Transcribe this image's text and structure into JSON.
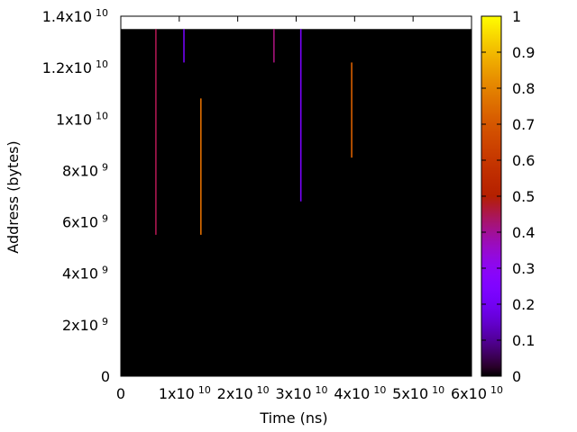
{
  "chart_data": {
    "type": "heatmap",
    "xlabel": "Time (ns)",
    "ylabel": "Address (bytes)",
    "xlim": [
      0,
      60000000000
    ],
    "ylim": [
      0,
      14000000000
    ],
    "x_ticks": [
      {
        "value": 0,
        "mantissa": "0",
        "exponent": ""
      },
      {
        "value": 10000000000,
        "mantissa": "1x10",
        "exponent": "10"
      },
      {
        "value": 20000000000,
        "mantissa": "2x10",
        "exponent": "10"
      },
      {
        "value": 30000000000,
        "mantissa": "3x10",
        "exponent": "10"
      },
      {
        "value": 40000000000,
        "mantissa": "4x10",
        "exponent": "10"
      },
      {
        "value": 50000000000,
        "mantissa": "5x10",
        "exponent": "10"
      },
      {
        "value": 60000000000,
        "mantissa": "6x10",
        "exponent": "10"
      }
    ],
    "y_ticks": [
      {
        "value": 0,
        "mantissa": "0",
        "exponent": ""
      },
      {
        "value": 2000000000,
        "mantissa": "2x10",
        "exponent": "9"
      },
      {
        "value": 4000000000,
        "mantissa": "4x10",
        "exponent": "9"
      },
      {
        "value": 6000000000,
        "mantissa": "6x10",
        "exponent": "9"
      },
      {
        "value": 8000000000,
        "mantissa": "8x10",
        "exponent": "9"
      },
      {
        "value": 10000000000,
        "mantissa": "1x10",
        "exponent": "10"
      },
      {
        "value": 12000000000,
        "mantissa": "1.2x10",
        "exponent": "10"
      },
      {
        "value": 14000000000,
        "mantissa": "1.4x10",
        "exponent": "10"
      }
    ],
    "data_region": {
      "x": [
        0,
        60000000000
      ],
      "y": [
        0,
        13500000000
      ]
    },
    "background_value": 0,
    "segments": [
      {
        "x": 6000000000,
        "y0": 5500000000,
        "y1": 13500000000,
        "value": 0.45
      },
      {
        "x": 10800000000,
        "y0": 12200000000,
        "y1": 13500000000,
        "value": 0.2
      },
      {
        "x": 13700000000,
        "y0": 5500000000,
        "y1": 10800000000,
        "value": 0.75
      },
      {
        "x": 26200000000,
        "y0": 12200000000,
        "y1": 13500000000,
        "value": 0.42
      },
      {
        "x": 30800000000,
        "y0": 6800000000,
        "y1": 13500000000,
        "value": 0.22
      },
      {
        "x": 39500000000,
        "y0": 8500000000,
        "y1": 12200000000,
        "value": 0.72
      }
    ],
    "colorbar": {
      "range": [
        0,
        1
      ],
      "ticks": [
        "0",
        "0.1",
        "0.2",
        "0.3",
        "0.4",
        "0.5",
        "0.6",
        "0.7",
        "0.8",
        "0.9",
        "1"
      ],
      "colormap": "gnuplot"
    },
    "grid": false
  }
}
